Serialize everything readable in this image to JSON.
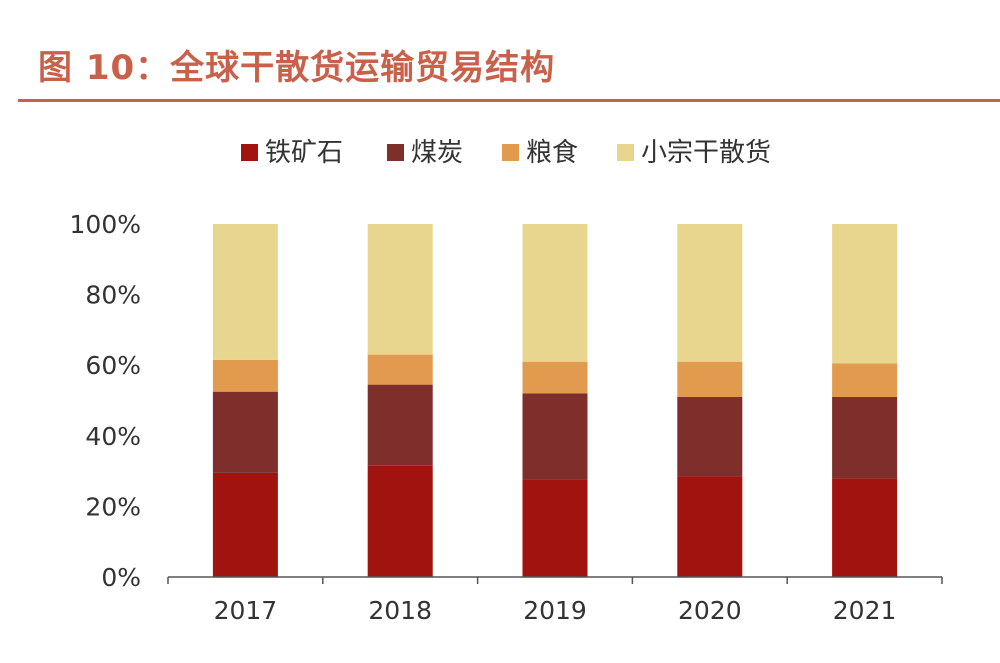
{
  "figure_title": "图 10：全球干散货运输贸易结构",
  "chart_data": {
    "type": "bar",
    "stacked": true,
    "categories": [
      "2017",
      "2018",
      "2019",
      "2020",
      "2021"
    ],
    "ylim": [
      0,
      100
    ],
    "yticks": [
      "0%",
      "20%",
      "40%",
      "60%",
      "80%",
      "100%"
    ],
    "legend_position": "top",
    "grid": false,
    "series": [
      {
        "name": "铁矿石",
        "color": "#a0130f",
        "values": [
          29.5,
          31.5,
          27.5,
          28.5,
          28.0
        ]
      },
      {
        "name": "煤炭",
        "color": "#7e2e2b",
        "values": [
          23.0,
          23.0,
          24.5,
          22.5,
          23.0
        ]
      },
      {
        "name": "粮食",
        "color": "#e29a4e",
        "values": [
          9.0,
          8.5,
          9.0,
          10.0,
          9.5
        ]
      },
      {
        "name": "小宗干散货",
        "color": "#e8d68e",
        "values": [
          38.5,
          37.0,
          39.0,
          39.0,
          39.5
        ]
      }
    ]
  }
}
